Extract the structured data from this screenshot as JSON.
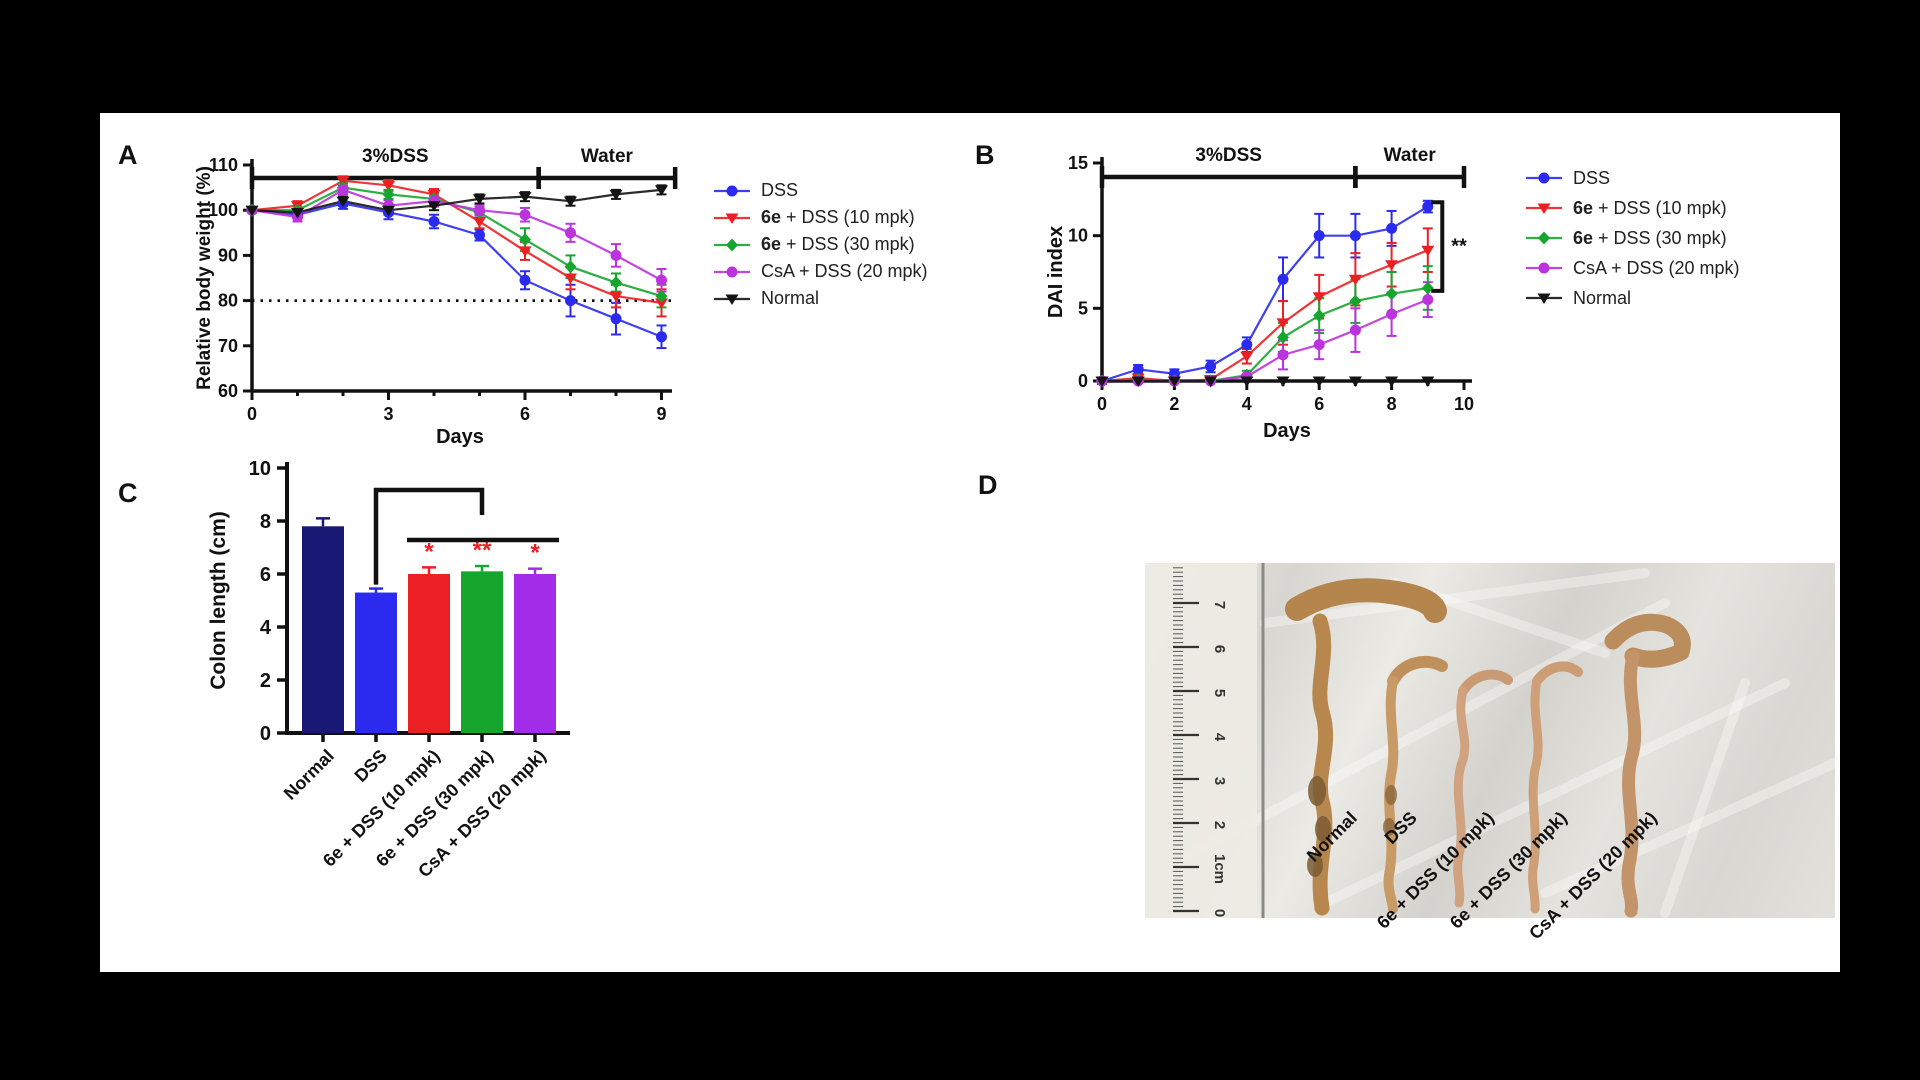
{
  "figure": {
    "background": "#000000",
    "paper_color": "#ffffff",
    "panels": [
      {
        "label": "A"
      },
      {
        "label": "B"
      },
      {
        "label": "C"
      },
      {
        "label": "D"
      }
    ]
  },
  "chart_data": [
    {
      "panel": "A",
      "type": "line",
      "xlabel": "Days",
      "ylabel": "Relative body weight (%)",
      "xlim": [
        0,
        9.3
      ],
      "ylim": [
        60,
        110
      ],
      "xticks": [
        0,
        3,
        6,
        9
      ],
      "yticks": [
        60,
        70,
        80,
        90,
        100,
        110
      ],
      "reference_line_y": 80,
      "phase_brackets": [
        {
          "label": "3%DSS",
          "x_start": 0,
          "x_end": 6.3
        },
        {
          "label": "Water",
          "x_start": 6.3,
          "x_end": 9.3
        }
      ],
      "x": [
        0,
        1,
        2,
        3,
        4,
        5,
        6,
        7,
        8,
        9
      ],
      "series": [
        {
          "name": "DSS",
          "bold_prefix_len": 0,
          "color": "#2b2bf0",
          "marker": "circle",
          "values": [
            100,
            99,
            101.5,
            99.5,
            97.5,
            94.5,
            84.5,
            80,
            76,
            72
          ],
          "errors": [
            0.5,
            0.8,
            1.2,
            1.5,
            1.5,
            1.2,
            2,
            3.5,
            3.5,
            2.5
          ]
        },
        {
          "name": "6e + DSS (10 mpk)",
          "bold_prefix_len": 2,
          "color": "#ec1f24",
          "marker": "triangle-down",
          "values": [
            100,
            101,
            106.5,
            105.5,
            103.5,
            97.5,
            91,
            85,
            81,
            79.5
          ],
          "errors": [
            0.5,
            1,
            1,
            1.2,
            1.2,
            1.5,
            2,
            2.5,
            2.5,
            3
          ]
        },
        {
          "name": "6e + DSS (30 mpk)",
          "bold_prefix_len": 2,
          "color": "#16a62e",
          "marker": "diamond",
          "values": [
            100,
            100,
            105,
            103.5,
            102.5,
            99.5,
            93.5,
            87.5,
            84,
            81
          ],
          "errors": [
            0.5,
            0.8,
            1,
            1,
            1.2,
            1.2,
            2.5,
            2.5,
            2,
            2.5
          ]
        },
        {
          "name": "CsA + DSS (20 mpk)",
          "bold_prefix_len": 0,
          "color": "#bb33dd",
          "marker": "circle",
          "values": [
            100,
            98.5,
            104.5,
            101,
            102,
            100,
            99,
            95,
            90,
            84.5
          ],
          "errors": [
            0.5,
            1,
            1,
            1.2,
            1.2,
            1.2,
            1.5,
            2,
            2.5,
            2.5
          ]
        },
        {
          "name": "Normal",
          "bold_prefix_len": 0,
          "color": "#141414",
          "marker": "triangle-down",
          "values": [
            100,
            99.5,
            102,
            100,
            101,
            102.5,
            103,
            102,
            103.5,
            104.5
          ],
          "errors": [
            0.5,
            0.5,
            1,
            1,
            1,
            1,
            1,
            1,
            1,
            1
          ]
        }
      ]
    },
    {
      "panel": "B",
      "type": "line",
      "xlabel": "Days",
      "ylabel": "DAI index",
      "xlim": [
        0,
        10.2
      ],
      "ylim": [
        0,
        15
      ],
      "xticks": [
        0,
        2,
        4,
        6,
        8,
        10
      ],
      "yticks": [
        0,
        5,
        10,
        15
      ],
      "phase_brackets": [
        {
          "label": "3%DSS",
          "x_start": 0,
          "x_end": 7
        },
        {
          "label": "Water",
          "x_start": 7,
          "x_end": 10
        }
      ],
      "significance": {
        "label": "**",
        "x": 9.4,
        "y_top": 12.3,
        "y_bottom": 6.2
      },
      "x": [
        0,
        1,
        2,
        3,
        4,
        5,
        6,
        7,
        8,
        9
      ],
      "series": [
        {
          "name": "DSS",
          "bold_prefix_len": 0,
          "color": "#2b2bf0",
          "marker": "circle",
          "values": [
            0,
            0.8,
            0.5,
            1,
            2.5,
            7,
            10,
            10,
            10.5,
            12
          ],
          "errors": [
            0.2,
            0.3,
            0.3,
            0.4,
            0.5,
            1.5,
            1.5,
            1.5,
            1.2,
            0.4
          ]
        },
        {
          "name": "6e + DSS (10 mpk)",
          "bold_prefix_len": 2,
          "color": "#ec1f24",
          "marker": "triangle-down",
          "values": [
            0,
            0.2,
            0,
            0.1,
            1.7,
            4,
            5.8,
            7,
            8,
            9
          ],
          "errors": [
            0.1,
            0.2,
            0.1,
            0.1,
            0.5,
            1.5,
            1.5,
            1.8,
            1.5,
            1.5
          ]
        },
        {
          "name": "6e + DSS (30 mpk)",
          "bold_prefix_len": 2,
          "color": "#16a62e",
          "marker": "diamond",
          "values": [
            0,
            0.1,
            0,
            0,
            0.4,
            3,
            4.5,
            5.5,
            6,
            6.4
          ],
          "errors": [
            0,
            0.1,
            0,
            0,
            0.3,
            1,
            1.2,
            1.5,
            1.5,
            1.5
          ]
        },
        {
          "name": "CsA + DSS (20 mpk)",
          "bold_prefix_len": 0,
          "color": "#bb33dd",
          "marker": "circle",
          "values": [
            0,
            0,
            0,
            0,
            0.3,
            1.8,
            2.5,
            3.5,
            4.6,
            5.6
          ],
          "errors": [
            0,
            0,
            0,
            0,
            0.2,
            1,
            1,
            1.5,
            1.5,
            1.2
          ]
        },
        {
          "name": "Normal",
          "bold_prefix_len": 0,
          "color": "#141414",
          "marker": "triangle-down",
          "values": [
            0,
            0,
            0,
            0,
            0,
            0,
            0,
            0,
            0,
            0
          ],
          "errors": [
            0,
            0,
            0,
            0,
            0,
            0,
            0,
            0,
            0,
            0
          ]
        }
      ]
    },
    {
      "panel": "C",
      "type": "bar",
      "ylabel": "Colon length (cm)",
      "ylim": [
        0,
        10
      ],
      "yticks": [
        0,
        2,
        4,
        6,
        8,
        10
      ],
      "categories": [
        "Normal",
        "DSS",
        "6e + DSS (10 mpk)",
        "6e + DSS (30 mpk)",
        "CsA + DSS (20 mpk)"
      ],
      "values": [
        7.8,
        5.3,
        6.0,
        6.1,
        6.0
      ],
      "errors": [
        0.3,
        0.15,
        0.25,
        0.2,
        0.2
      ],
      "bar_colors": [
        "#191975",
        "#2b2bf0",
        "#ec1f24",
        "#16a62e",
        "#a32ce8"
      ],
      "significance_labels": [
        "",
        "",
        "*",
        "**",
        "*"
      ],
      "significance_color": "#ec1f24"
    },
    {
      "panel": "D",
      "type": "photo",
      "description": "Excised mouse colons on plastic wrap beside a centimeter ruler",
      "ruler_labels": [
        "0",
        "1cm",
        "2",
        "3",
        "4",
        "5",
        "6",
        "7"
      ],
      "group_labels": [
        "Normal",
        "DSS",
        "6e + DSS (10 mpk)",
        "6e + DSS (30 mpk)",
        "CsA + DSS (20 mpk)"
      ]
    }
  ]
}
